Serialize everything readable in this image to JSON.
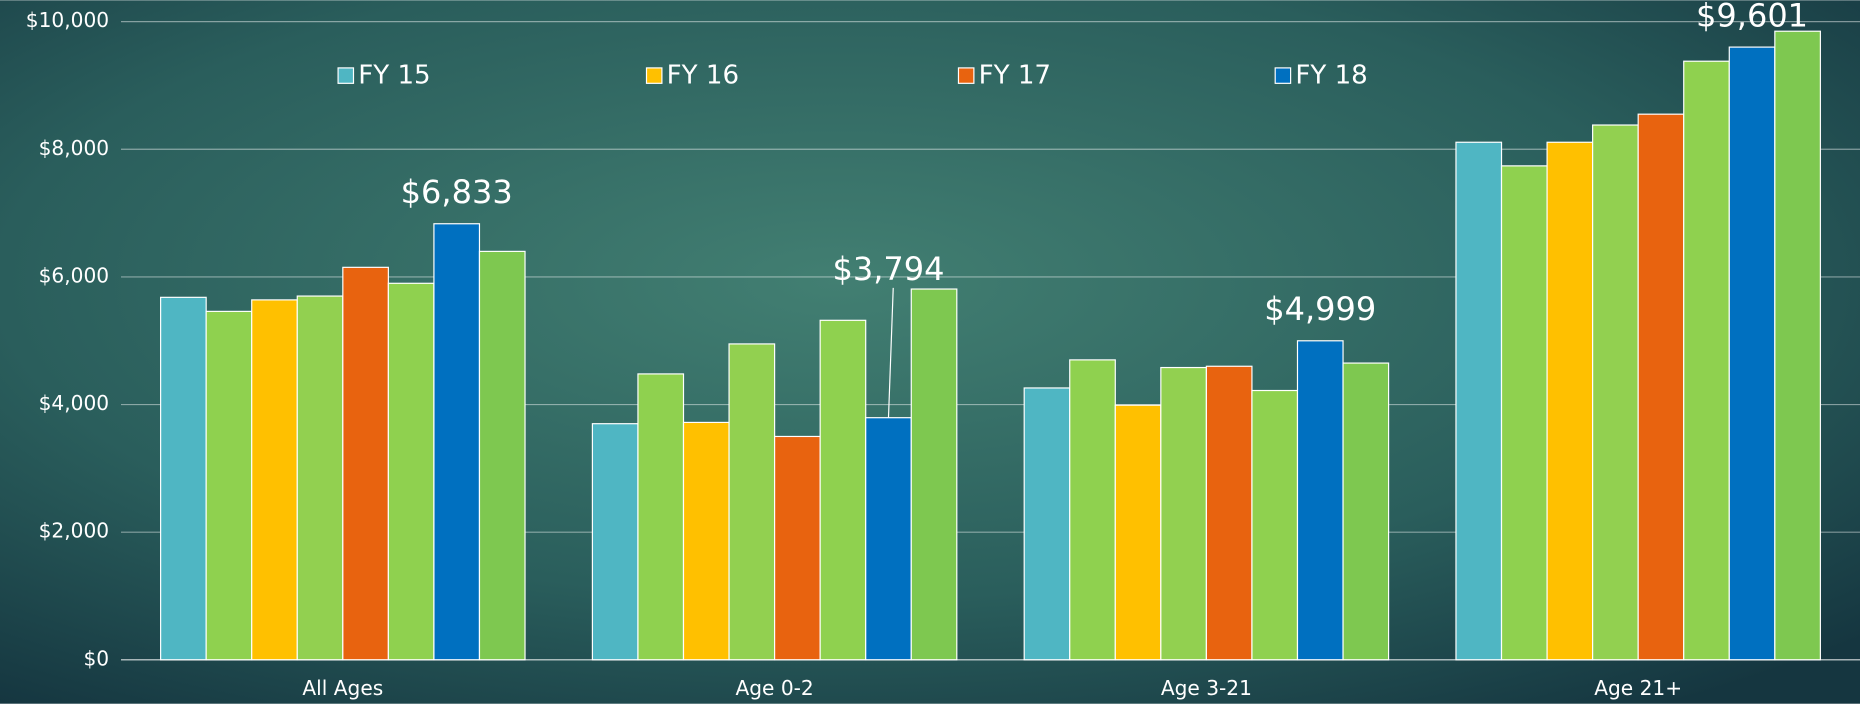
{
  "chart_data": {
    "type": "bar",
    "categories": [
      "All Ages",
      "Age 0-2",
      "Age 3-21",
      "Age 21+"
    ],
    "series": [
      {
        "name": "FY 15",
        "color": "#4fb6c3",
        "values": [
          5680,
          3700,
          4260,
          8110
        ]
      },
      {
        "color": "#8fd14f",
        "values": [
          5460,
          4480,
          4700,
          7740
        ]
      },
      {
        "name": "FY 16",
        "color": "#ffc000",
        "values": [
          5640,
          3720,
          3990,
          8110
        ]
      },
      {
        "color": "#92d050",
        "values": [
          5700,
          4950,
          4580,
          8380
        ]
      },
      {
        "name": "FY 17",
        "color": "#e8630f",
        "values": [
          6150,
          3500,
          4600,
          8550
        ]
      },
      {
        "color": "#8fd14f",
        "values": [
          5900,
          5320,
          4220,
          9380
        ]
      },
      {
        "name": "FY 18",
        "color": "#0070c0",
        "values": [
          6833,
          3794,
          4999,
          9601
        ],
        "value_labels": [
          "$6,833",
          "$3,794",
          "$4,999",
          "$9,601"
        ]
      },
      {
        "color": "#7ec850",
        "values": [
          6400,
          5810,
          4650,
          9850
        ]
      }
    ],
    "ylim": [
      0,
      10000
    ],
    "yticks": [
      {
        "value": 0,
        "label": "$0"
      },
      {
        "value": 2000,
        "label": "$2,000"
      },
      {
        "value": 4000,
        "label": "$4,000"
      },
      {
        "value": 6000,
        "label": "$6,000"
      },
      {
        "value": 8000,
        "label": "$8,000"
      },
      {
        "value": 10000,
        "label": "$10,000"
      }
    ],
    "grid": true
  }
}
